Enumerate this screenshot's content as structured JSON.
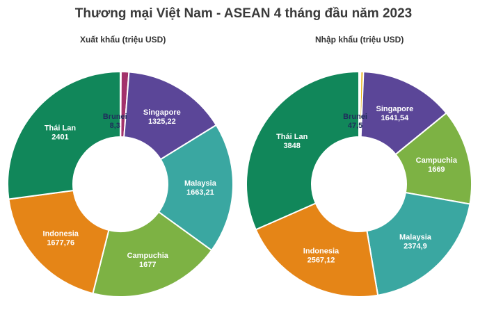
{
  "title": "Thương mại Việt Nam - ASEAN 4 tháng đầu năm 2023",
  "chart_data": [
    {
      "type": "pie",
      "title": "Xuất khẩu (triệu USD)",
      "donut": true,
      "slices": [
        {
          "name": "Brunei",
          "value": 8.3,
          "value_label": "8,3",
          "color": "#e8b00f"
        },
        {
          "name": "",
          "value": 100,
          "value_label": "",
          "color": "#a3326b"
        },
        {
          "name": "Singapore",
          "value": 1325.22,
          "value_label": "1325,22",
          "color": "#5b4698"
        },
        {
          "name": "Malaysia",
          "value": 1663.21,
          "value_label": "1663,21",
          "color": "#3aa7a1"
        },
        {
          "name": "Campuchia",
          "value": 1677,
          "value_label": "1677",
          "color": "#7db244"
        },
        {
          "name": "Indonesia",
          "value": 1677.76,
          "value_label": "1677,76",
          "color": "#e58517"
        },
        {
          "name": "Thái Lan",
          "value": 2401,
          "value_label": "2401",
          "color": "#11875a"
        }
      ]
    },
    {
      "type": "pie",
      "title": "Nhập khẩu (triệu USD)",
      "donut": true,
      "slices": [
        {
          "name": "",
          "value": 8,
          "value_label": "",
          "color": "#2f3b7a"
        },
        {
          "name": "",
          "value": 22,
          "value_label": "",
          "color": "#a3326b"
        },
        {
          "name": "Brunei",
          "value": 47.5,
          "value_label": "47,5",
          "color": "#e8b00f"
        },
        {
          "name": "Singapore",
          "value": 1641.54,
          "value_label": "1641,54",
          "color": "#5b4698"
        },
        {
          "name": "Campuchia",
          "value": 1669,
          "value_label": "1669",
          "color": "#7db244"
        },
        {
          "name": "Malaysia",
          "value": 2374.9,
          "value_label": "2374,9",
          "color": "#3aa7a1"
        },
        {
          "name": "Indonesia",
          "value": 2567.12,
          "value_label": "2567,12",
          "color": "#e58517"
        },
        {
          "name": "Thái Lan",
          "value": 3848,
          "value_label": "3848",
          "color": "#11875a"
        }
      ]
    }
  ]
}
